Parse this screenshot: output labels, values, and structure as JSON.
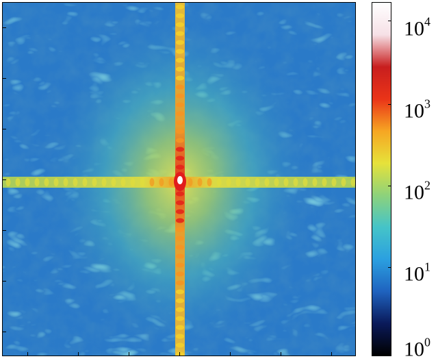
{
  "colorbar": {
    "colormap": [
      "#000000",
      "#0a1a5a",
      "#1f63bf",
      "#2ba0e0",
      "#45c4c8",
      "#8ed27a",
      "#e6e23a",
      "#f6a623",
      "#ea3418",
      "#c81e1e",
      "#f6e0e6",
      "#ffffff"
    ],
    "scale": "log",
    "labels": [
      {
        "base": "10",
        "exp": "4"
      },
      {
        "base": "10",
        "exp": "3"
      },
      {
        "base": "10",
        "exp": "2"
      },
      {
        "base": "10",
        "exp": "1"
      },
      {
        "base": "10",
        "exp": "0"
      }
    ]
  },
  "image": {
    "description_kind": "2D Fourier power spectrum heatmap",
    "background_color": "#2a78c8",
    "center_color": "#ffffff"
  }
}
